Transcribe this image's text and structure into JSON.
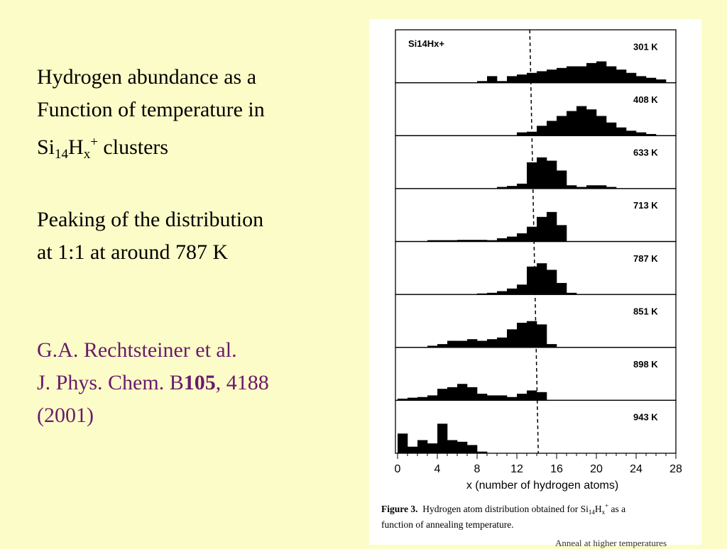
{
  "slide": {
    "title_line1": "Hydrogen abundance as a",
    "title_line2": "Function of temperature in",
    "title_line3_a": "Si",
    "title_line3_sub": "14",
    "title_line3_b": "H",
    "title_line3_sub2": "x",
    "title_line3_sup": "+",
    "title_line3_c": " clusters",
    "peak_line1": "Peaking of the distribution",
    "peak_line2": "at 1:1 at around 787 K",
    "citation_line1": "G.A. Rechtsteiner et al.",
    "citation_line2_a": "J. Phys. Chem. B",
    "citation_line2_vol": "105",
    "citation_line2_b": ", 4188",
    "citation_line3": "(2001)",
    "text_color": "#000000",
    "citation_color": "#6b1a6b",
    "background": "#fcfcc8"
  },
  "figure": {
    "caption_label": "Figure 3.",
    "caption_text_a": "Hydrogen atom distribution obtained for Si",
    "caption_sub1": "14",
    "caption_text_b": "H",
    "caption_sub2": "x",
    "caption_sup": "+",
    "caption_text_c": " as a",
    "caption_line2": "function of annealing temperature.",
    "cut_text": "Anneal at higher temperatures"
  },
  "chart_data": {
    "type": "bar",
    "title": "Si14Hx+",
    "xlabel": "x (number of hydrogen atoms)",
    "ylabel": "",
    "xlim": [
      0,
      28
    ],
    "xticks": [
      0,
      4,
      8,
      12,
      16,
      20,
      24,
      28
    ],
    "xtick_labels": [
      "0",
      "4",
      "8",
      "12",
      "16",
      "20",
      "24",
      "28"
    ],
    "reference_line_x": 13.3,
    "bar_color": "#000000",
    "series": [
      {
        "name": "301 K",
        "x": [
          8,
          9,
          10,
          11,
          12,
          13,
          14,
          15,
          16,
          17,
          18,
          19,
          20,
          21,
          22,
          23,
          24,
          25,
          26
        ],
        "values": [
          0.05,
          0.2,
          0.05,
          0.2,
          0.25,
          0.3,
          0.35,
          0.4,
          0.45,
          0.5,
          0.5,
          0.6,
          0.65,
          0.5,
          0.4,
          0.3,
          0.2,
          0.15,
          0.1
        ]
      },
      {
        "name": "408 K",
        "x": [
          12,
          13,
          14,
          15,
          16,
          17,
          18,
          19,
          20,
          21,
          22,
          23,
          24,
          25
        ],
        "values": [
          0.1,
          0.12,
          0.3,
          0.45,
          0.6,
          0.75,
          0.9,
          0.8,
          0.6,
          0.4,
          0.25,
          0.15,
          0.1,
          0.05
        ]
      },
      {
        "name": "633 K",
        "x": [
          10,
          11,
          12,
          13,
          14,
          15,
          16,
          17,
          18,
          19,
          20,
          21
        ],
        "values": [
          0.05,
          0.08,
          0.15,
          0.8,
          0.95,
          0.85,
          0.55,
          0.1,
          0.05,
          0.1,
          0.1,
          0.05
        ]
      },
      {
        "name": "713 K",
        "x": [
          3,
          4,
          5,
          6,
          7,
          8,
          9,
          10,
          11,
          12,
          13,
          14,
          15,
          16
        ],
        "values": [
          0.04,
          0.04,
          0.04,
          0.05,
          0.05,
          0.05,
          0.04,
          0.1,
          0.15,
          0.25,
          0.45,
          0.75,
          0.9,
          0.5
        ]
      },
      {
        "name": "787 K",
        "x": [
          8,
          9,
          10,
          11,
          12,
          13,
          14,
          15,
          16,
          17
        ],
        "values": [
          0.03,
          0.05,
          0.1,
          0.18,
          0.3,
          0.85,
          0.95,
          0.75,
          0.35,
          0.05
        ]
      },
      {
        "name": "851 K",
        "x": [
          3,
          4,
          5,
          6,
          7,
          8,
          9,
          10,
          11,
          12,
          13,
          14,
          15
        ],
        "values": [
          0.05,
          0.1,
          0.2,
          0.2,
          0.25,
          0.2,
          0.25,
          0.3,
          0.55,
          0.75,
          0.8,
          0.7,
          0.1
        ]
      },
      {
        "name": "898 K",
        "x": [
          0,
          1,
          2,
          3,
          4,
          5,
          6,
          7,
          8,
          9,
          10,
          11,
          12,
          13,
          14
        ],
        "values": [
          0.05,
          0.08,
          0.1,
          0.15,
          0.35,
          0.4,
          0.5,
          0.4,
          0.2,
          0.15,
          0.15,
          0.1,
          0.2,
          0.3,
          0.25
        ]
      },
      {
        "name": "943 K",
        "x": [
          0,
          1,
          2,
          3,
          4,
          5,
          6,
          7,
          8
        ],
        "values": [
          0.6,
          0.2,
          0.4,
          0.3,
          0.9,
          0.4,
          0.35,
          0.25,
          0.05
        ]
      }
    ]
  }
}
